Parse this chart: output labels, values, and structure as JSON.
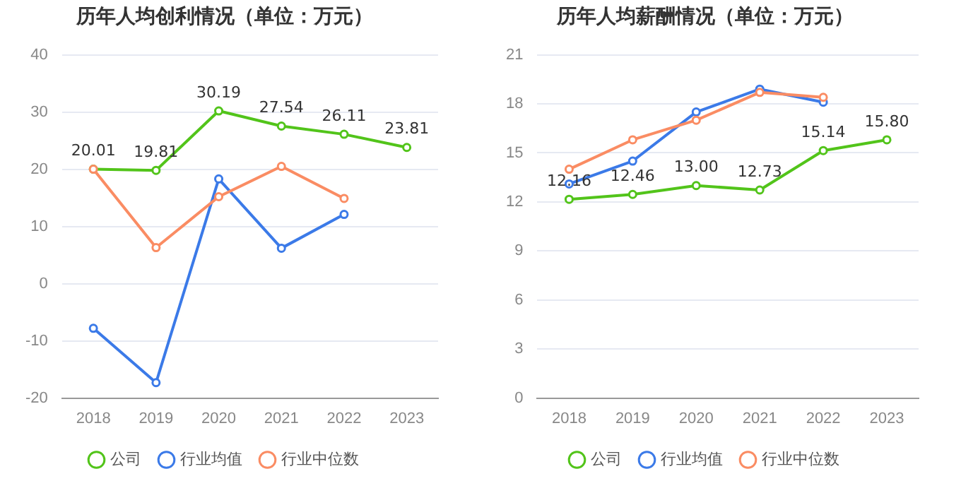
{
  "chart_data": [
    {
      "type": "line",
      "title": "历年人均创利情况（单位：万元）",
      "categories": [
        "2018",
        "2019",
        "2020",
        "2021",
        "2022",
        "2023"
      ],
      "ylim": [
        -20,
        40
      ],
      "yticks": [
        -20,
        -10,
        0,
        10,
        20,
        30,
        40
      ],
      "grid": "y",
      "legend": "bottom",
      "marker": "circle",
      "series": [
        {
          "name": "公司",
          "color": "#52c41a",
          "values": [
            20.01,
            19.81,
            30.19,
            27.54,
            26.11,
            23.81
          ],
          "value_labels": [
            "20.01",
            "19.81",
            "30.19",
            "27.54",
            "26.11",
            "23.81"
          ]
        },
        {
          "name": "行业均值",
          "color": "#3b7ae8",
          "values": [
            -7.8,
            -17.3,
            18.3,
            6.2,
            12.1,
            null
          ]
        },
        {
          "name": "行业中位数",
          "color": "#fa8c63",
          "values": [
            20.0,
            6.3,
            15.2,
            20.5,
            14.9,
            null
          ]
        }
      ]
    },
    {
      "type": "line",
      "title": "历年人均薪酬情况（单位：万元）",
      "categories": [
        "2018",
        "2019",
        "2020",
        "2021",
        "2022",
        "2023"
      ],
      "ylim": [
        0,
        21
      ],
      "yticks": [
        0,
        3,
        6,
        9,
        12,
        15,
        18,
        21
      ],
      "grid": "y",
      "legend": "bottom",
      "marker": "circle",
      "series": [
        {
          "name": "公司",
          "color": "#52c41a",
          "values": [
            12.16,
            12.46,
            13.0,
            12.73,
            15.14,
            15.8
          ],
          "value_labels": [
            "12.16",
            "12.46",
            "13.00",
            "12.73",
            "15.14",
            "15.80"
          ]
        },
        {
          "name": "行业均值",
          "color": "#3b7ae8",
          "values": [
            13.1,
            14.5,
            17.5,
            18.9,
            18.1,
            null
          ]
        },
        {
          "name": "行业中位数",
          "color": "#fa8c63",
          "values": [
            14.0,
            15.8,
            17.0,
            18.7,
            18.4,
            null
          ]
        }
      ]
    }
  ]
}
